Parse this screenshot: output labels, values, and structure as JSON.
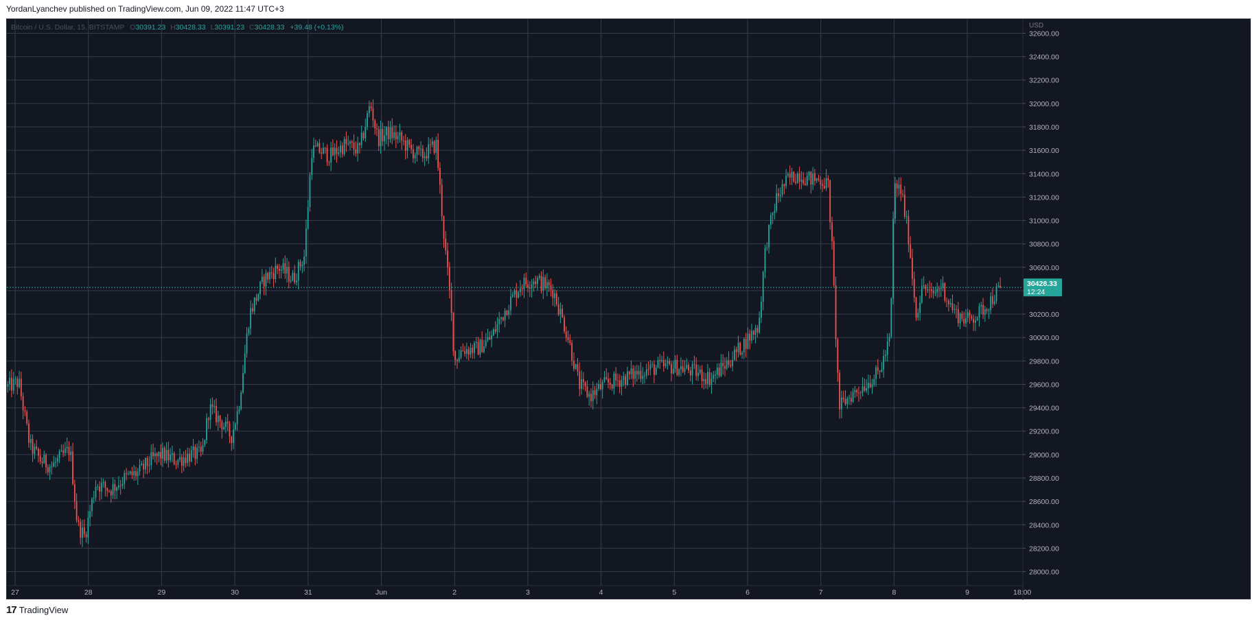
{
  "header": {
    "publisher_line": "YordanLyanchev published on TradingView.com, Jun 09, 2022 11:47 UTC+3"
  },
  "legend": {
    "symbol": "Bitcoin / U.S. Dollar, 15, BITSTAMP",
    "ohlc": [
      {
        "k": "O",
        "v": "30391.23"
      },
      {
        "k": "H",
        "v": "30428.33"
      },
      {
        "k": "L",
        "v": "30391.23"
      },
      {
        "k": "C",
        "v": "30428.33"
      }
    ],
    "change": "+39.48 (+0.13%)"
  },
  "price_axis": {
    "currency": "USD"
  },
  "last_price": {
    "value": "30428.33",
    "countdown": "12:24"
  },
  "footer": {
    "logo_glyph": "17",
    "brand": "TradingView"
  },
  "colors": {
    "background": "#131722",
    "grid": "#363c4e",
    "up": "#26a69a",
    "down": "#ef5350",
    "text": "#b2b5be"
  },
  "chart_data": {
    "type": "candlestick",
    "title": "Bitcoin / U.S. Dollar, 15, BITSTAMP",
    "x_ticks": [
      "27",
      "28",
      "29",
      "30",
      "31",
      "Jun",
      "2",
      "3",
      "4",
      "5",
      "6",
      "7",
      "8",
      "9",
      "18:00"
    ],
    "y_ticks": [
      28000,
      28200,
      28400,
      28600,
      28800,
      29000,
      29200,
      29400,
      29600,
      29800,
      30000,
      30200,
      30400,
      30600,
      30800,
      31000,
      31200,
      31400,
      31600,
      31800,
      32000,
      32200,
      32400,
      32600
    ],
    "ylim": [
      27880,
      32720
    ],
    "grid": true,
    "path": [
      [
        -0.1,
        29580
      ],
      [
        0.05,
        29620
      ],
      [
        0.2,
        29080
      ],
      [
        0.35,
        28950
      ],
      [
        0.5,
        28900
      ],
      [
        0.75,
        29050
      ],
      [
        0.85,
        28400
      ],
      [
        0.95,
        28300
      ],
      [
        1.1,
        28750
      ],
      [
        1.3,
        28700
      ],
      [
        1.5,
        28800
      ],
      [
        1.7,
        28850
      ],
      [
        1.85,
        28950
      ],
      [
        2.0,
        29000
      ],
      [
        2.2,
        28950
      ],
      [
        2.4,
        29000
      ],
      [
        2.55,
        29000
      ],
      [
        2.65,
        29400
      ],
      [
        2.85,
        29250
      ],
      [
        2.95,
        29150
      ],
      [
        3.05,
        29400
      ],
      [
        3.2,
        30200
      ],
      [
        3.4,
        30500
      ],
      [
        3.6,
        30600
      ],
      [
        3.8,
        30500
      ],
      [
        3.95,
        30700
      ],
      [
        4.05,
        31600
      ],
      [
        4.15,
        31600
      ],
      [
        4.3,
        31550
      ],
      [
        4.5,
        31650
      ],
      [
        4.7,
        31600
      ],
      [
        4.85,
        32000
      ],
      [
        4.95,
        31700
      ],
      [
        5.1,
        31750
      ],
      [
        5.25,
        31700
      ],
      [
        5.4,
        31600
      ],
      [
        5.55,
        31550
      ],
      [
        5.75,
        31650
      ],
      [
        5.85,
        30900
      ],
      [
        5.95,
        30250
      ],
      [
        6.0,
        29800
      ],
      [
        6.1,
        29900
      ],
      [
        6.3,
        29900
      ],
      [
        6.5,
        30000
      ],
      [
        6.7,
        30250
      ],
      [
        6.9,
        30450
      ],
      [
        7.1,
        30500
      ],
      [
        7.35,
        30400
      ],
      [
        7.55,
        30000
      ],
      [
        7.7,
        29600
      ],
      [
        7.85,
        29500
      ],
      [
        8.05,
        29600
      ],
      [
        8.3,
        29650
      ],
      [
        8.5,
        29700
      ],
      [
        8.8,
        29750
      ],
      [
        9.05,
        29750
      ],
      [
        9.3,
        29700
      ],
      [
        9.5,
        29650
      ],
      [
        9.75,
        29800
      ],
      [
        9.95,
        29950
      ],
      [
        10.15,
        30100
      ],
      [
        10.25,
        30800
      ],
      [
        10.4,
        31200
      ],
      [
        10.55,
        31350
      ],
      [
        10.7,
        31400
      ],
      [
        10.85,
        31350
      ],
      [
        11.0,
        31350
      ],
      [
        11.1,
        31300
      ],
      [
        11.15,
        30800
      ],
      [
        11.25,
        29400
      ],
      [
        11.4,
        29500
      ],
      [
        11.6,
        29600
      ],
      [
        11.8,
        29700
      ],
      [
        11.95,
        30000
      ],
      [
        12.0,
        31300
      ],
      [
        12.1,
        31250
      ],
      [
        12.2,
        30850
      ],
      [
        12.3,
        30200
      ],
      [
        12.4,
        30450
      ],
      [
        12.5,
        30350
      ],
      [
        12.65,
        30450
      ],
      [
        12.75,
        30300
      ],
      [
        12.85,
        30200
      ],
      [
        13.0,
        30150
      ],
      [
        13.15,
        30200
      ],
      [
        13.3,
        30300
      ],
      [
        13.45,
        30428.33
      ]
    ]
  }
}
